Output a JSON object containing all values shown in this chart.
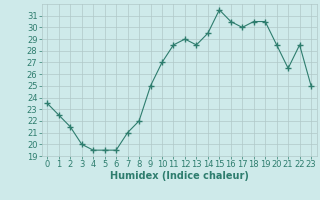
{
  "x": [
    0,
    1,
    2,
    3,
    4,
    5,
    6,
    7,
    8,
    9,
    10,
    11,
    12,
    13,
    14,
    15,
    16,
    17,
    18,
    19,
    20,
    21,
    22,
    23
  ],
  "y": [
    23.5,
    22.5,
    21.5,
    20.0,
    19.5,
    19.5,
    19.5,
    21.0,
    22.0,
    25.0,
    27.0,
    28.5,
    29.0,
    28.5,
    29.5,
    31.5,
    30.5,
    30.0,
    30.5,
    30.5,
    28.5,
    26.5,
    28.5,
    25.0
  ],
  "xlabel": "Humidex (Indice chaleur)",
  "ylim": [
    19,
    32
  ],
  "xlim": [
    -0.5,
    23.5
  ],
  "yticks": [
    19,
    20,
    21,
    22,
    23,
    24,
    25,
    26,
    27,
    28,
    29,
    30,
    31
  ],
  "xticks": [
    0,
    1,
    2,
    3,
    4,
    5,
    6,
    7,
    8,
    9,
    10,
    11,
    12,
    13,
    14,
    15,
    16,
    17,
    18,
    19,
    20,
    21,
    22,
    23
  ],
  "line_color": "#2e7d6e",
  "marker": "+",
  "marker_size": 4.0,
  "bg_color": "#ceeaea",
  "grid_color": "#b0c8c8",
  "xlabel_fontsize": 7,
  "tick_fontsize": 6
}
